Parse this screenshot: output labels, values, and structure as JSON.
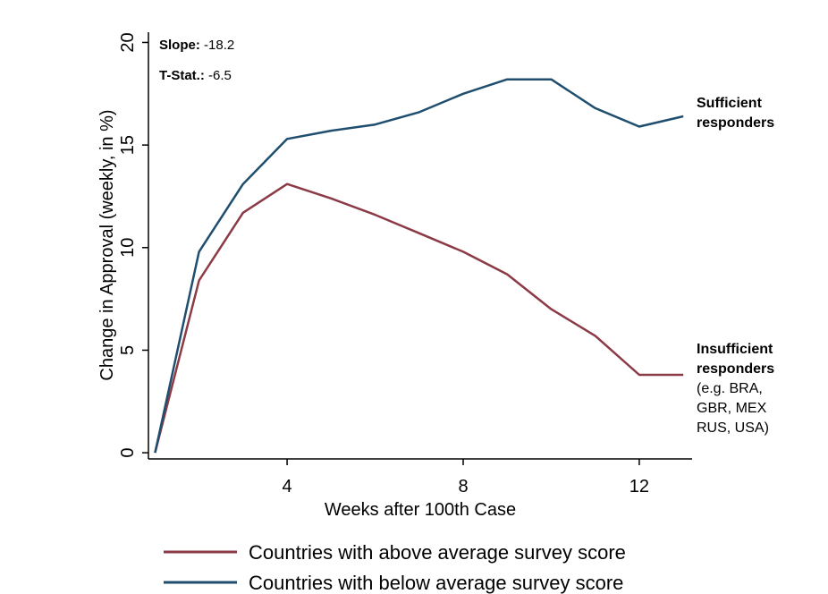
{
  "chart_data": {
    "type": "line",
    "xlabel": "Weeks after 100th Case",
    "ylabel": "Change in Approval (weekly, in %)",
    "xlim": [
      0.85,
      13.2
    ],
    "ylim": [
      -0.3,
      20.5
    ],
    "x_ticks": [
      4,
      8,
      12
    ],
    "y_ticks": [
      0,
      5,
      10,
      15,
      20
    ],
    "grid": false,
    "legend_position": "bottom",
    "annotations": {
      "slope_label": "Slope:",
      "slope_value": " -18.2",
      "tstat_label": "T-Stat.:",
      "tstat_value": " -6.5"
    },
    "series": [
      {
        "name": "Countries with above average survey score",
        "color": "#8b3a46",
        "end_label": [
          "Insufficient",
          "responders",
          "(e.g. BRA,",
          "GBR, MEX",
          "RUS, USA)"
        ],
        "x": [
          1,
          2,
          3,
          4,
          5,
          6,
          7,
          8,
          9,
          10,
          11,
          12,
          13
        ],
        "values": [
          0,
          8.4,
          11.7,
          13.1,
          12.4,
          11.6,
          10.7,
          9.8,
          8.7,
          7.0,
          5.7,
          3.8,
          3.8
        ]
      },
      {
        "name": "Countries with below average survey score",
        "color": "#1f4e6e",
        "end_label": [
          "Sufficient",
          "responders"
        ],
        "x": [
          1,
          2,
          3,
          4,
          5,
          6,
          7,
          8,
          9,
          10,
          11,
          12,
          13
        ],
        "values": [
          0,
          9.8,
          13.1,
          15.3,
          15.7,
          16.0,
          16.6,
          17.5,
          18.2,
          18.2,
          16.8,
          15.9,
          16.4
        ]
      }
    ]
  }
}
